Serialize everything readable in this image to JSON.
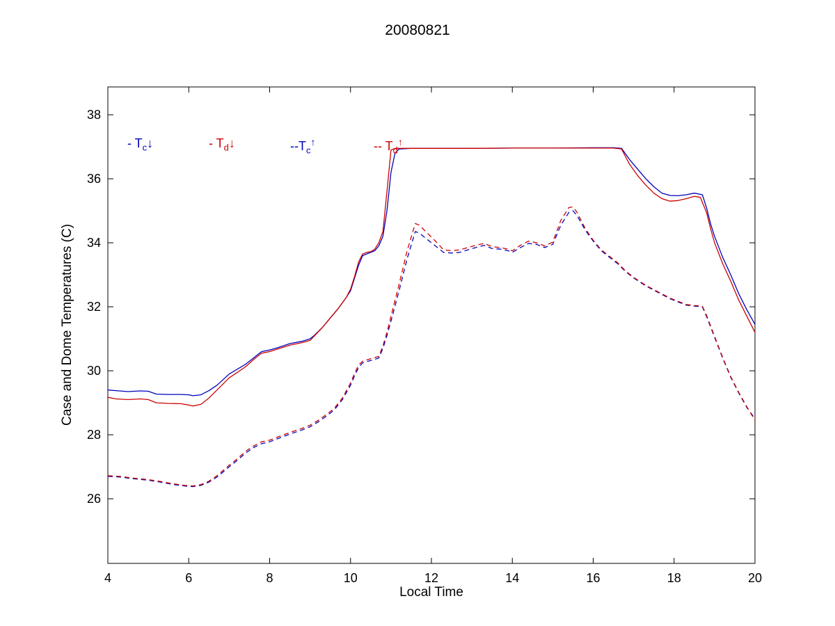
{
  "chart_data": {
    "type": "line",
    "title": "20080821",
    "xlabel": "Local Time",
    "ylabel": "Case and Dome Temperatures (C)",
    "xlim": [
      4,
      20
    ],
    "ylim": [
      23.98,
      38.87
    ],
    "xticks": [
      4,
      6,
      8,
      10,
      12,
      14,
      16,
      18,
      20
    ],
    "yticks": [
      26,
      28,
      30,
      32,
      34,
      36,
      38
    ],
    "grid": false,
    "colors": {
      "blue": "#0000bb",
      "red": "#cc0000"
    },
    "legend": {
      "position": "inside-top-left",
      "items": [
        {
          "prefix": "- ",
          "symbol": "T",
          "subscript": "c",
          "arrow": "↓",
          "color": "#0000bb"
        },
        {
          "prefix": "- ",
          "symbol": "T",
          "subscript": "d",
          "arrow": "↓",
          "color": "#cc0000"
        },
        {
          "prefix": "--",
          "symbol": "T",
          "subscript": "c",
          "arrow": "↑",
          "color": "#0000bb"
        },
        {
          "prefix": "-- ",
          "symbol": "T",
          "subscript": "d",
          "arrow": "↑",
          "color": "#cc0000"
        }
      ]
    },
    "series": [
      {
        "name": "Tc_down",
        "color": "#0000bb",
        "style": "solid",
        "points": [
          [
            4.0,
            29.4
          ],
          [
            4.2,
            29.38
          ],
          [
            4.5,
            29.35
          ],
          [
            4.8,
            29.37
          ],
          [
            5.0,
            29.36
          ],
          [
            5.2,
            29.27
          ],
          [
            5.5,
            29.26
          ],
          [
            5.8,
            29.26
          ],
          [
            6.0,
            29.25
          ],
          [
            6.1,
            29.22
          ],
          [
            6.3,
            29.25
          ],
          [
            6.5,
            29.38
          ],
          [
            6.7,
            29.55
          ],
          [
            7.0,
            29.9
          ],
          [
            7.2,
            30.05
          ],
          [
            7.4,
            30.2
          ],
          [
            7.6,
            30.4
          ],
          [
            7.8,
            30.6
          ],
          [
            8.0,
            30.65
          ],
          [
            8.2,
            30.72
          ],
          [
            8.5,
            30.85
          ],
          [
            8.8,
            30.92
          ],
          [
            9.0,
            31.0
          ],
          [
            9.1,
            31.1
          ],
          [
            9.3,
            31.35
          ],
          [
            9.5,
            31.65
          ],
          [
            9.7,
            31.95
          ],
          [
            9.9,
            32.3
          ],
          [
            10.0,
            32.5
          ],
          [
            10.1,
            32.9
          ],
          [
            10.2,
            33.3
          ],
          [
            10.3,
            33.6
          ],
          [
            10.4,
            33.65
          ],
          [
            10.5,
            33.7
          ],
          [
            10.6,
            33.75
          ],
          [
            10.7,
            33.9
          ],
          [
            10.8,
            34.2
          ],
          [
            10.9,
            35.0
          ],
          [
            11.0,
            36.2
          ],
          [
            11.1,
            36.8
          ],
          [
            11.2,
            36.93
          ],
          [
            11.5,
            36.95
          ],
          [
            12.0,
            36.95
          ],
          [
            13.0,
            36.95
          ],
          [
            14.0,
            36.96
          ],
          [
            15.0,
            36.96
          ],
          [
            16.0,
            36.97
          ],
          [
            16.5,
            36.97
          ],
          [
            16.7,
            36.95
          ],
          [
            16.9,
            36.6
          ],
          [
            17.1,
            36.3
          ],
          [
            17.3,
            36.0
          ],
          [
            17.5,
            35.75
          ],
          [
            17.7,
            35.55
          ],
          [
            17.9,
            35.48
          ],
          [
            18.1,
            35.47
          ],
          [
            18.3,
            35.5
          ],
          [
            18.5,
            35.55
          ],
          [
            18.7,
            35.5
          ],
          [
            18.8,
            35.1
          ],
          [
            18.9,
            34.6
          ],
          [
            19.0,
            34.2
          ],
          [
            19.2,
            33.55
          ],
          [
            19.4,
            33.0
          ],
          [
            19.6,
            32.4
          ],
          [
            19.8,
            31.9
          ],
          [
            20.0,
            31.45
          ]
        ]
      },
      {
        "name": "Td_down",
        "color": "#cc0000",
        "style": "solid",
        "points": [
          [
            4.0,
            29.17
          ],
          [
            4.2,
            29.12
          ],
          [
            4.5,
            29.1
          ],
          [
            4.8,
            29.12
          ],
          [
            5.0,
            29.1
          ],
          [
            5.2,
            29.0
          ],
          [
            5.5,
            28.98
          ],
          [
            5.8,
            28.97
          ],
          [
            6.0,
            28.93
          ],
          [
            6.1,
            28.9
          ],
          [
            6.3,
            28.95
          ],
          [
            6.5,
            29.15
          ],
          [
            6.7,
            29.4
          ],
          [
            7.0,
            29.78
          ],
          [
            7.2,
            29.95
          ],
          [
            7.4,
            30.12
          ],
          [
            7.6,
            30.35
          ],
          [
            7.8,
            30.55
          ],
          [
            8.0,
            30.6
          ],
          [
            8.2,
            30.68
          ],
          [
            8.5,
            30.8
          ],
          [
            8.8,
            30.88
          ],
          [
            9.0,
            30.95
          ],
          [
            9.1,
            31.08
          ],
          [
            9.3,
            31.35
          ],
          [
            9.5,
            31.65
          ],
          [
            9.7,
            31.95
          ],
          [
            9.9,
            32.3
          ],
          [
            10.0,
            32.55
          ],
          [
            10.1,
            32.95
          ],
          [
            10.2,
            33.4
          ],
          [
            10.3,
            33.65
          ],
          [
            10.4,
            33.7
          ],
          [
            10.5,
            33.72
          ],
          [
            10.6,
            33.8
          ],
          [
            10.7,
            34.0
          ],
          [
            10.8,
            34.35
          ],
          [
            10.9,
            35.6
          ],
          [
            11.0,
            36.9
          ],
          [
            11.1,
            36.95
          ],
          [
            11.5,
            36.95
          ],
          [
            12.0,
            36.95
          ],
          [
            13.0,
            36.95
          ],
          [
            14.0,
            36.96
          ],
          [
            15.0,
            36.96
          ],
          [
            16.0,
            36.96
          ],
          [
            16.5,
            36.96
          ],
          [
            16.7,
            36.93
          ],
          [
            16.9,
            36.45
          ],
          [
            17.1,
            36.1
          ],
          [
            17.3,
            35.8
          ],
          [
            17.5,
            35.55
          ],
          [
            17.7,
            35.38
          ],
          [
            17.9,
            35.3
          ],
          [
            18.1,
            35.32
          ],
          [
            18.3,
            35.38
          ],
          [
            18.5,
            35.45
          ],
          [
            18.65,
            35.42
          ],
          [
            18.8,
            34.95
          ],
          [
            18.9,
            34.45
          ],
          [
            19.0,
            34.0
          ],
          [
            19.2,
            33.35
          ],
          [
            19.4,
            32.8
          ],
          [
            19.6,
            32.2
          ],
          [
            19.8,
            31.7
          ],
          [
            20.0,
            31.2
          ]
        ]
      },
      {
        "name": "Tc_up",
        "color": "#0000bb",
        "style": "dashed",
        "points": [
          [
            4.0,
            26.7
          ],
          [
            4.3,
            26.68
          ],
          [
            4.6,
            26.63
          ],
          [
            5.0,
            26.58
          ],
          [
            5.3,
            26.52
          ],
          [
            5.6,
            26.45
          ],
          [
            5.9,
            26.4
          ],
          [
            6.1,
            26.38
          ],
          [
            6.3,
            26.42
          ],
          [
            6.5,
            26.52
          ],
          [
            6.7,
            26.68
          ],
          [
            7.0,
            27.0
          ],
          [
            7.2,
            27.2
          ],
          [
            7.4,
            27.42
          ],
          [
            7.6,
            27.6
          ],
          [
            7.8,
            27.72
          ],
          [
            8.0,
            27.78
          ],
          [
            8.2,
            27.88
          ],
          [
            8.5,
            28.02
          ],
          [
            8.8,
            28.15
          ],
          [
            9.0,
            28.25
          ],
          [
            9.2,
            28.4
          ],
          [
            9.4,
            28.58
          ],
          [
            9.6,
            28.78
          ],
          [
            9.8,
            29.1
          ],
          [
            10.0,
            29.55
          ],
          [
            10.1,
            29.85
          ],
          [
            10.2,
            30.1
          ],
          [
            10.3,
            30.25
          ],
          [
            10.5,
            30.32
          ],
          [
            10.7,
            30.4
          ],
          [
            10.8,
            30.7
          ],
          [
            10.9,
            31.1
          ],
          [
            11.0,
            31.55
          ],
          [
            11.2,
            32.5
          ],
          [
            11.4,
            33.5
          ],
          [
            11.6,
            34.35
          ],
          [
            11.7,
            34.3
          ],
          [
            11.9,
            34.1
          ],
          [
            12.1,
            33.9
          ],
          [
            12.3,
            33.7
          ],
          [
            12.5,
            33.68
          ],
          [
            12.7,
            33.7
          ],
          [
            12.9,
            33.78
          ],
          [
            13.1,
            33.85
          ],
          [
            13.3,
            33.92
          ],
          [
            13.5,
            33.82
          ],
          [
            13.7,
            33.8
          ],
          [
            13.9,
            33.75
          ],
          [
            14.0,
            33.7
          ],
          [
            14.2,
            33.85
          ],
          [
            14.4,
            33.98
          ],
          [
            14.6,
            33.95
          ],
          [
            14.8,
            33.85
          ],
          [
            15.0,
            33.95
          ],
          [
            15.2,
            34.55
          ],
          [
            15.4,
            34.95
          ],
          [
            15.5,
            35.0
          ],
          [
            15.6,
            34.85
          ],
          [
            15.8,
            34.4
          ],
          [
            16.0,
            34.05
          ],
          [
            16.2,
            33.75
          ],
          [
            16.4,
            33.55
          ],
          [
            16.6,
            33.35
          ],
          [
            16.8,
            33.1
          ],
          [
            17.0,
            32.9
          ],
          [
            17.3,
            32.65
          ],
          [
            17.6,
            32.45
          ],
          [
            17.9,
            32.25
          ],
          [
            18.1,
            32.15
          ],
          [
            18.3,
            32.05
          ],
          [
            18.5,
            32.02
          ],
          [
            18.7,
            32.0
          ],
          [
            18.8,
            31.7
          ],
          [
            19.0,
            31.05
          ],
          [
            19.2,
            30.4
          ],
          [
            19.4,
            29.8
          ],
          [
            19.6,
            29.3
          ],
          [
            19.8,
            28.85
          ],
          [
            20.0,
            28.5
          ]
        ]
      },
      {
        "name": "Td_up",
        "color": "#cc0000",
        "style": "dashed",
        "points": [
          [
            4.0,
            26.72
          ],
          [
            4.3,
            26.7
          ],
          [
            4.6,
            26.65
          ],
          [
            5.0,
            26.6
          ],
          [
            5.3,
            26.54
          ],
          [
            5.6,
            26.47
          ],
          [
            5.9,
            26.42
          ],
          [
            6.1,
            26.4
          ],
          [
            6.3,
            26.44
          ],
          [
            6.5,
            26.55
          ],
          [
            6.7,
            26.72
          ],
          [
            7.0,
            27.05
          ],
          [
            7.2,
            27.25
          ],
          [
            7.4,
            27.48
          ],
          [
            7.6,
            27.65
          ],
          [
            7.8,
            27.78
          ],
          [
            8.0,
            27.83
          ],
          [
            8.2,
            27.93
          ],
          [
            8.5,
            28.07
          ],
          [
            8.8,
            28.2
          ],
          [
            9.0,
            28.3
          ],
          [
            9.2,
            28.45
          ],
          [
            9.4,
            28.63
          ],
          [
            9.6,
            28.83
          ],
          [
            9.8,
            29.15
          ],
          [
            10.0,
            29.62
          ],
          [
            10.1,
            29.92
          ],
          [
            10.2,
            30.18
          ],
          [
            10.3,
            30.3
          ],
          [
            10.5,
            30.38
          ],
          [
            10.7,
            30.45
          ],
          [
            10.8,
            30.78
          ],
          [
            10.9,
            31.2
          ],
          [
            11.0,
            31.7
          ],
          [
            11.2,
            32.7
          ],
          [
            11.4,
            33.75
          ],
          [
            11.6,
            34.6
          ],
          [
            11.7,
            34.55
          ],
          [
            11.9,
            34.3
          ],
          [
            12.1,
            34.05
          ],
          [
            12.3,
            33.78
          ],
          [
            12.5,
            33.75
          ],
          [
            12.7,
            33.78
          ],
          [
            12.9,
            33.85
          ],
          [
            13.1,
            33.92
          ],
          [
            13.3,
            33.98
          ],
          [
            13.5,
            33.88
          ],
          [
            13.7,
            33.85
          ],
          [
            13.9,
            33.8
          ],
          [
            14.0,
            33.75
          ],
          [
            14.2,
            33.92
          ],
          [
            14.4,
            34.05
          ],
          [
            14.6,
            34.0
          ],
          [
            14.8,
            33.9
          ],
          [
            15.0,
            34.02
          ],
          [
            15.2,
            34.7
          ],
          [
            15.4,
            35.1
          ],
          [
            15.5,
            35.12
          ],
          [
            15.6,
            34.95
          ],
          [
            15.8,
            34.45
          ],
          [
            16.0,
            34.08
          ],
          [
            16.2,
            33.78
          ],
          [
            16.4,
            33.58
          ],
          [
            16.6,
            33.38
          ],
          [
            16.8,
            33.12
          ],
          [
            17.0,
            32.92
          ],
          [
            17.3,
            32.67
          ],
          [
            17.6,
            32.47
          ],
          [
            17.9,
            32.27
          ],
          [
            18.1,
            32.17
          ],
          [
            18.3,
            32.07
          ],
          [
            18.5,
            32.04
          ],
          [
            18.7,
            32.02
          ],
          [
            18.8,
            31.74
          ],
          [
            19.0,
            31.08
          ],
          [
            19.2,
            30.42
          ],
          [
            19.4,
            29.82
          ],
          [
            19.6,
            29.32
          ],
          [
            19.8,
            28.87
          ],
          [
            20.0,
            28.45
          ]
        ]
      }
    ]
  }
}
